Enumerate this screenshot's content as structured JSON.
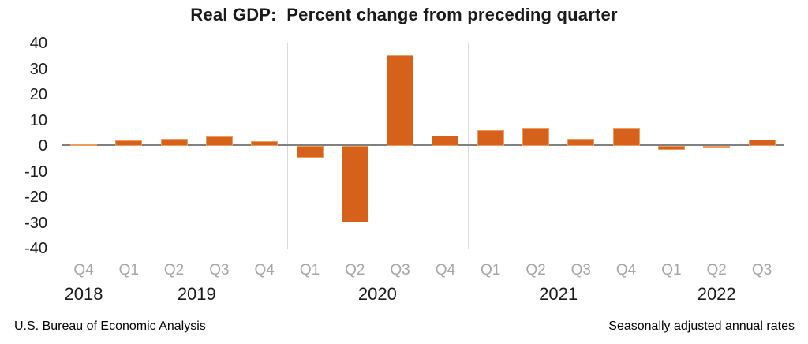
{
  "title": "Real GDP:  Percent change from preceding quarter",
  "footer": {
    "left": "U.S. Bureau of Economic Analysis",
    "right": "Seasonally adjusted annual rates"
  },
  "chart_data": {
    "type": "bar",
    "title": "Real GDP:  Percent change from preceding quarter",
    "categories": [
      "Q4",
      "Q1",
      "Q2",
      "Q3",
      "Q4",
      "Q1",
      "Q2",
      "Q3",
      "Q4",
      "Q1",
      "Q2",
      "Q3",
      "Q4",
      "Q1",
      "Q2",
      "Q3"
    ],
    "year_groups": [
      {
        "year": "2018",
        "quarters": 1
      },
      {
        "year": "2019",
        "quarters": 4
      },
      {
        "year": "2020",
        "quarters": 4
      },
      {
        "year": "2021",
        "quarters": 4
      },
      {
        "year": "2022",
        "quarters": 3
      }
    ],
    "values": [
      0.7,
      2.2,
      2.7,
      3.6,
      1.8,
      -4.6,
      -29.9,
      35.3,
      3.9,
      6.3,
      7.0,
      2.7,
      7.0,
      -1.6,
      -0.6,
      2.6
    ],
    "xlabel": "",
    "ylabel": "",
    "ylim": [
      -40,
      40
    ],
    "yticks": [
      40,
      30,
      20,
      10,
      0,
      -10,
      -20,
      -30,
      -40
    ],
    "grid": "vertical-year-separators-only",
    "legend": "none",
    "bar_color": "#D6611A",
    "bar_border_color": "#EF9C5F",
    "axis_line_color": "#808080",
    "separator_color": "#D9D9D9",
    "quarter_label_color": "#A6A6A6",
    "year_label_color": "#1A1A1A"
  }
}
